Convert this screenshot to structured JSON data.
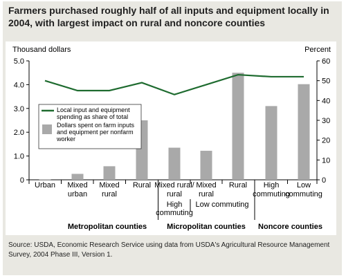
{
  "title": "Farmers purchased roughly half of all inputs and equipment locally in 2004, with largest impact on rural and noncore counties",
  "source_note": "Source:  USDA, Economic Research Service using data from USDA's Agricultural Resource Management Survey, 2004 Phase III, Version 1.",
  "colors": {
    "line": "#1e6b2f",
    "bar": "#a9a9a9",
    "frame_bg": "#e9e8e2",
    "plot_bg": "#ffffff"
  },
  "chart_data": {
    "type": "bar",
    "left_axis": {
      "label": "Thousand dollars",
      "ylim": [
        0,
        5
      ],
      "ticks": [
        "0",
        "1.0",
        "2.0",
        "3.0",
        "4.0",
        "5.0"
      ]
    },
    "right_axis": {
      "label": "Percent",
      "ylim": [
        0,
        60
      ],
      "ticks": [
        "0",
        "10",
        "20",
        "30",
        "40",
        "50",
        "60"
      ]
    },
    "categories": [
      {
        "lines": [
          "Urban"
        ],
        "sub": []
      },
      {
        "lines": [
          "Mixed",
          "urban"
        ],
        "sub": []
      },
      {
        "lines": [
          "Mixed",
          "rural"
        ],
        "sub": []
      },
      {
        "lines": [
          "Rural"
        ],
        "sub": []
      },
      {
        "lines": [
          "Mixed rural/",
          "rural"
        ],
        "sub": []
      },
      {
        "lines": [
          "Mixed",
          "rural"
        ],
        "sub": []
      },
      {
        "lines": [
          "Rural"
        ],
        "sub": []
      },
      {
        "lines": [
          "High",
          "commuting"
        ],
        "sub": []
      },
      {
        "lines": [
          "Low",
          "commuting"
        ],
        "sub": []
      }
    ],
    "sub_labels": [
      {
        "lines": [
          "High",
          "commuting"
        ],
        "category": 4
      },
      {
        "lines": [
          "Low commuting"
        ],
        "categories": [
          5,
          6
        ]
      }
    ],
    "groups": [
      {
        "name": "Metropolitan counties",
        "categories": [
          0,
          3
        ]
      },
      {
        "name": "Micropolitan counties",
        "categories": [
          4,
          6
        ]
      },
      {
        "name": "Noncore counties",
        "categories": [
          7,
          8
        ]
      }
    ],
    "series": [
      {
        "name": "Dollars spent on farm inputs and equipment per nonfarm worker",
        "kind": "bar",
        "axis": "left",
        "values": [
          0.02,
          0.25,
          0.57,
          2.5,
          1.35,
          1.22,
          4.5,
          3.1,
          4.02
        ]
      },
      {
        "name": "Local input and equipment spending as share of total",
        "kind": "line",
        "axis": "right",
        "values": [
          50,
          45,
          45,
          49,
          43,
          48,
          53,
          52,
          52
        ]
      }
    ],
    "legend_placement": "middle-left",
    "grid": false
  }
}
